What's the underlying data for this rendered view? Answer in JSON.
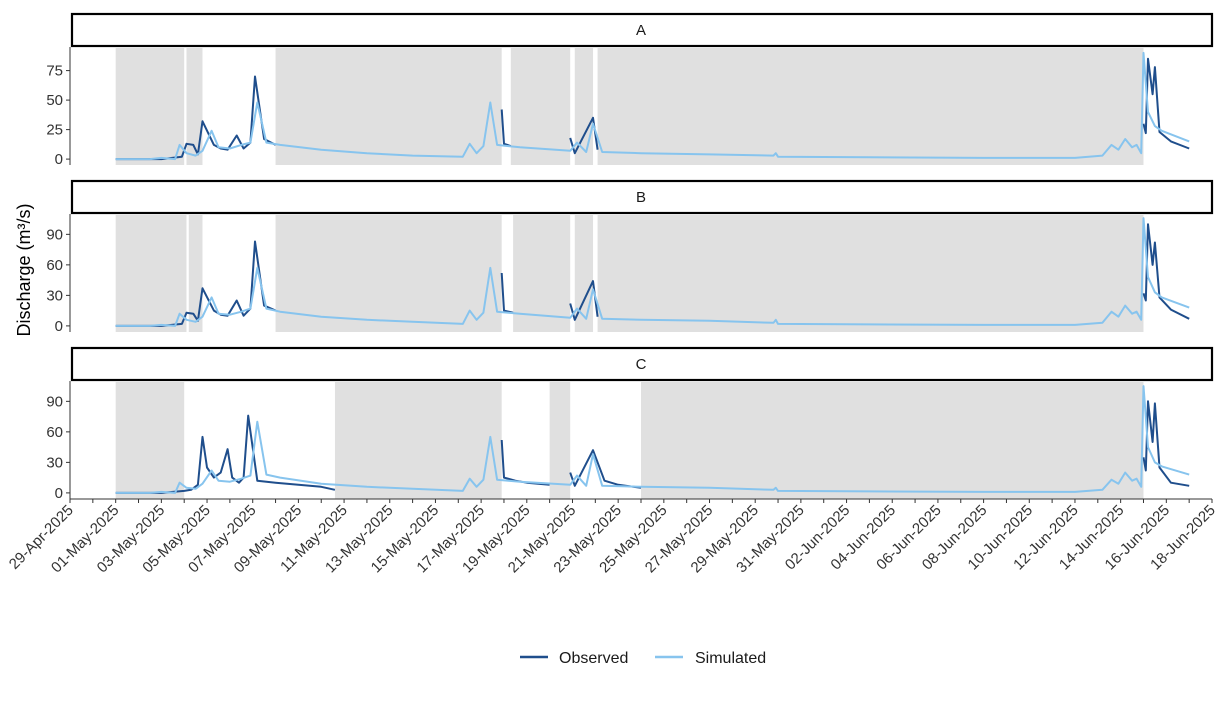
{
  "chart_data": {
    "type": "line",
    "ylabel": "Discharge (m³/s)",
    "xlabel": "",
    "x_type": "date",
    "xlim": [
      "2025-04-29",
      "2025-06-18"
    ],
    "x_ticks": [
      "29-Apr-2025",
      "01-May-2025",
      "03-May-2025",
      "05-May-2025",
      "07-May-2025",
      "09-May-2025",
      "11-May-2025",
      "13-May-2025",
      "15-May-2025",
      "17-May-2025",
      "19-May-2025",
      "21-May-2025",
      "23-May-2025",
      "25-May-2025",
      "27-May-2025",
      "29-May-2025",
      "31-May-2025",
      "02-Jun-2025",
      "04-Jun-2025",
      "06-Jun-2025",
      "08-Jun-2025",
      "10-Jun-2025",
      "12-Jun-2025",
      "14-Jun-2025",
      "16-Jun-2025",
      "18-Jun-2025"
    ],
    "legend": {
      "position": "bottom",
      "entries": [
        "Observed",
        "Simulated"
      ]
    },
    "colors": {
      "Observed": "#1f4e8c",
      "Simulated": "#87c4ee",
      "shade": "#e0e0e0"
    },
    "panels": [
      {
        "label": "A",
        "ylim": [
          -5,
          95
        ],
        "yticks": [
          0,
          25,
          50,
          75
        ],
        "shaded_periods": [
          [
            "2025-05-01",
            "2025-05-04"
          ],
          [
            "2025-05-04.1",
            "2025-05-04.8"
          ],
          [
            "2025-05-08",
            "2025-05-17.9"
          ],
          [
            "2025-05-18.3",
            "2025-05-20.9"
          ],
          [
            "2025-05-21.1",
            "2025-05-21.9"
          ],
          [
            "2025-05-22.1",
            "2025-06-15"
          ]
        ],
        "series": [
          {
            "name": "Observed",
            "x": [
              "2025-05-01",
              "2025-05-03",
              "2025-05-03.9",
              "2025-05-04.1",
              "2025-05-04.4",
              "2025-05-04.6",
              "2025-05-04.8",
              "2025-05-05.3",
              "2025-05-05.6",
              "2025-05-05.9",
              "2025-05-06.3",
              "2025-05-06.6",
              "2025-05-06.9",
              "2025-05-07.1",
              "2025-05-07.5",
              "2025-05-08"
            ],
            "y": [
              0,
              0,
              2,
              13,
              12,
              4,
              32,
              12,
              9,
              8,
              20,
              9,
              14,
              70,
              17,
              12
            ]
          },
          {
            "name": "Observed",
            "x": [
              "2025-05-17.9",
              "2025-05-18",
              "2025-05-18.3"
            ],
            "y": [
              42,
              13,
              11
            ]
          },
          {
            "name": "Observed",
            "x": [
              "2025-05-20.9",
              "2025-05-21.1",
              "2025-05-21.9",
              "2025-05-22.1"
            ],
            "y": [
              18,
              5,
              35,
              8
            ]
          },
          {
            "name": "Observed",
            "x": [
              "2025-06-15",
              "2025-06-15.1",
              "2025-06-15.2",
              "2025-06-15.4",
              "2025-06-15.5",
              "2025-06-15.7",
              "2025-06-16.2",
              "2025-06-17"
            ],
            "y": [
              30,
              22,
              85,
              55,
              78,
              23,
              15,
              9
            ]
          },
          {
            "name": "Simulated",
            "x": [
              "2025-05-01",
              "2025-05-02.5",
              "2025-05-03",
              "2025-05-03.6",
              "2025-05-03.8",
              "2025-05-04.1",
              "2025-05-04.5",
              "2025-05-04.8",
              "2025-05-05.2",
              "2025-05-05.5",
              "2025-05-06",
              "2025-05-06.5",
              "2025-05-06.9",
              "2025-05-07.2",
              "2025-05-07.6",
              "2025-05-08.2",
              "2025-05-10",
              "2025-05-12",
              "2025-05-14",
              "2025-05-16.2",
              "2025-05-16.5",
              "2025-05-16.8",
              "2025-05-17.1",
              "2025-05-17.4",
              "2025-05-17.7",
              "2025-05-18.2",
              "2025-05-18.7",
              "2025-05-20.9",
              "2025-05-21.2",
              "2025-05-21.6",
              "2025-05-21.9",
              "2025-05-22.3",
              "2025-05-24",
              "2025-05-27",
              "2025-05-29.8",
              "2025-05-29.9",
              "2025-05-30",
              "2025-06-03",
              "2025-06-08",
              "2025-06-12",
              "2025-06-13.2",
              "2025-06-13.6",
              "2025-06-13.9",
              "2025-06-14.2",
              "2025-06-14.5",
              "2025-06-14.7",
              "2025-06-14.9",
              "2025-06-15",
              "2025-06-15.2",
              "2025-06-15.5",
              "2025-06-15.8",
              "2025-06-17"
            ],
            "y": [
              0,
              0,
              1,
              0,
              12,
              5,
              3,
              7,
              24,
              10,
              9,
              12,
              14,
              48,
              14,
              12,
              8,
              5,
              3,
              2,
              13,
              5,
              11,
              48,
              12,
              11,
              10,
              7,
              14,
              6,
              30,
              6,
              5,
              4,
              3,
              5,
              2,
              1.5,
              1,
              1,
              3,
              12,
              8,
              17,
              10,
              12,
              5,
              90,
              40,
              28,
              24,
              15
            ]
          }
        ]
      },
      {
        "label": "B",
        "ylim": [
          -6,
          110
        ],
        "yticks": [
          0,
          30,
          60,
          90
        ],
        "shaded_periods": [
          [
            "2025-05-01",
            "2025-05-04.1"
          ],
          [
            "2025-05-04.2",
            "2025-05-04.8"
          ],
          [
            "2025-05-08",
            "2025-05-17.9"
          ],
          [
            "2025-05-18.4",
            "2025-05-20.9"
          ],
          [
            "2025-05-21.1",
            "2025-05-21.9"
          ],
          [
            "2025-05-22.1",
            "2025-06-15"
          ]
        ],
        "series": [
          {
            "name": "Observed",
            "x": [
              "2025-05-01",
              "2025-05-03",
              "2025-05-03.9",
              "2025-05-04.1",
              "2025-05-04.4",
              "2025-05-04.6",
              "2025-05-04.8",
              "2025-05-05.3",
              "2025-05-05.6",
              "2025-05-05.9",
              "2025-05-06.3",
              "2025-05-06.6",
              "2025-05-06.9",
              "2025-05-07.1",
              "2025-05-07.5",
              "2025-05-08"
            ],
            "y": [
              0,
              0,
              2,
              13,
              12,
              5,
              37,
              15,
              11,
              10,
              25,
              10,
              17,
              83,
              20,
              15
            ]
          },
          {
            "name": "Observed",
            "x": [
              "2025-05-17.9",
              "2025-05-18",
              "2025-05-18.4"
            ],
            "y": [
              52,
              15,
              13
            ]
          },
          {
            "name": "Observed",
            "x": [
              "2025-05-20.9",
              "2025-05-21.1",
              "2025-05-21.9",
              "2025-05-22.1"
            ],
            "y": [
              22,
              6,
              44,
              9
            ]
          },
          {
            "name": "Observed",
            "x": [
              "2025-06-15",
              "2025-06-15.1",
              "2025-06-15.2",
              "2025-06-15.4",
              "2025-06-15.5",
              "2025-06-15.7",
              "2025-06-16.2",
              "2025-06-17"
            ],
            "y": [
              32,
              25,
              100,
              60,
              82,
              28,
              16,
              7
            ]
          },
          {
            "name": "Simulated",
            "x": [
              "2025-05-01",
              "2025-05-02.5",
              "2025-05-03",
              "2025-05-03.6",
              "2025-05-03.8",
              "2025-05-04.1",
              "2025-05-04.5",
              "2025-05-04.8",
              "2025-05-05.2",
              "2025-05-05.5",
              "2025-05-06",
              "2025-05-06.5",
              "2025-05-06.9",
              "2025-05-07.2",
              "2025-05-07.6",
              "2025-05-08.2",
              "2025-05-10",
              "2025-05-12",
              "2025-05-14",
              "2025-05-16.2",
              "2025-05-16.5",
              "2025-05-16.8",
              "2025-05-17.1",
              "2025-05-17.4",
              "2025-05-17.7",
              "2025-05-18.2",
              "2025-05-18.7",
              "2025-05-20.9",
              "2025-05-21.2",
              "2025-05-21.6",
              "2025-05-21.9",
              "2025-05-22.3",
              "2025-05-24",
              "2025-05-27",
              "2025-05-29.8",
              "2025-05-29.9",
              "2025-05-30",
              "2025-06-03",
              "2025-06-08",
              "2025-06-12",
              "2025-06-13.2",
              "2025-06-13.6",
              "2025-06-13.9",
              "2025-06-14.2",
              "2025-06-14.5",
              "2025-06-14.7",
              "2025-06-14.9",
              "2025-06-15",
              "2025-06-15.2",
              "2025-06-15.5",
              "2025-06-15.8",
              "2025-06-17"
            ],
            "y": [
              0,
              0,
              1,
              0,
              12,
              6,
              4,
              9,
              28,
              12,
              11,
              14,
              17,
              57,
              17,
              14,
              9,
              6,
              4,
              2,
              15,
              6,
              13,
              57,
              14,
              13,
              12,
              8,
              17,
              7,
              36,
              7,
              6,
              5,
              3,
              6,
              2,
              1.5,
              1,
              1,
              3,
              14,
              9,
              20,
              12,
              14,
              6,
              106,
              48,
              33,
              28,
              18
            ]
          }
        ]
      },
      {
        "label": "C",
        "ylim": [
          -6,
          110
        ],
        "yticks": [
          0,
          30,
          60,
          90
        ],
        "shaded_periods": [
          [
            "2025-05-01",
            "2025-05-04"
          ],
          [
            "2025-05-10.6",
            "2025-05-17.9"
          ],
          [
            "2025-05-20",
            "2025-05-20.9"
          ],
          [
            "2025-05-24",
            "2025-06-15"
          ]
        ],
        "series": [
          {
            "name": "Observed",
            "x": [
              "2025-05-01",
              "2025-05-03",
              "2025-05-04",
              "2025-05-04.3",
              "2025-05-04.6",
              "2025-05-04.8",
              "2025-05-05",
              "2025-05-05.3",
              "2025-05-05.6",
              "2025-05-05.9",
              "2025-05-06.1",
              "2025-05-06.4",
              "2025-05-06.6",
              "2025-05-06.8",
              "2025-05-07.2",
              "2025-05-08",
              "2025-05-09",
              "2025-05-10",
              "2025-05-10.6"
            ],
            "y": [
              0,
              0,
              2,
              3,
              8,
              55,
              25,
              15,
              20,
              43,
              15,
              10,
              15,
              76,
              12,
              10,
              8,
              6,
              3
            ]
          },
          {
            "name": "Observed",
            "x": [
              "2025-05-17.9",
              "2025-05-18",
              "2025-05-18.5",
              "2025-05-19",
              "2025-05-19.5",
              "2025-05-20"
            ],
            "y": [
              52,
              15,
              12,
              10,
              9,
              8
            ]
          },
          {
            "name": "Observed",
            "x": [
              "2025-05-20.9",
              "2025-05-21.1",
              "2025-05-21.9",
              "2025-05-22.4",
              "2025-05-23",
              "2025-05-24"
            ],
            "y": [
              20,
              7,
              42,
              12,
              8,
              5
            ]
          },
          {
            "name": "Observed",
            "x": [
              "2025-06-15",
              "2025-06-15.1",
              "2025-06-15.2",
              "2025-06-15.4",
              "2025-06-15.5",
              "2025-06-15.7",
              "2025-06-16.2",
              "2025-06-17"
            ],
            "y": [
              35,
              22,
              90,
              50,
              88,
              25,
              10,
              7
            ]
          },
          {
            "name": "Simulated",
            "x": [
              "2025-05-01",
              "2025-05-02.5",
              "2025-05-03",
              "2025-05-03.6",
              "2025-05-03.8",
              "2025-05-04.1",
              "2025-05-04.5",
              "2025-05-04.8",
              "2025-05-05.2",
              "2025-05-05.5",
              "2025-05-06",
              "2025-05-06.5",
              "2025-05-06.9",
              "2025-05-07.2",
              "2025-05-07.6",
              "2025-05-08.2",
              "2025-05-10",
              "2025-05-12",
              "2025-05-14",
              "2025-05-16.2",
              "2025-05-16.5",
              "2025-05-16.8",
              "2025-05-17.1",
              "2025-05-17.4",
              "2025-05-17.7",
              "2025-05-18.2",
              "2025-05-18.7",
              "2025-05-20.9",
              "2025-05-21.2",
              "2025-05-21.6",
              "2025-05-21.9",
              "2025-05-22.3",
              "2025-05-24",
              "2025-05-27",
              "2025-05-29.8",
              "2025-05-29.9",
              "2025-05-30",
              "2025-06-03",
              "2025-06-08",
              "2025-06-12",
              "2025-06-13.2",
              "2025-06-13.6",
              "2025-06-13.9",
              "2025-06-14.2",
              "2025-06-14.5",
              "2025-06-14.7",
              "2025-06-14.9",
              "2025-06-15",
              "2025-06-15.2",
              "2025-06-15.5",
              "2025-06-15.8",
              "2025-06-17"
            ],
            "y": [
              0,
              0,
              1,
              0,
              10,
              5,
              4,
              9,
              22,
              12,
              11,
              14,
              17,
              70,
              18,
              15,
              9,
              6,
              4,
              2,
              14,
              6,
              13,
              55,
              13,
              12,
              11,
              8,
              17,
              7,
              38,
              7,
              6,
              5,
              3,
              5,
              2,
              1.5,
              1,
              1,
              3,
              13,
              9,
              20,
              12,
              14,
              6,
              105,
              45,
              30,
              26,
              18
            ]
          }
        ]
      }
    ]
  }
}
